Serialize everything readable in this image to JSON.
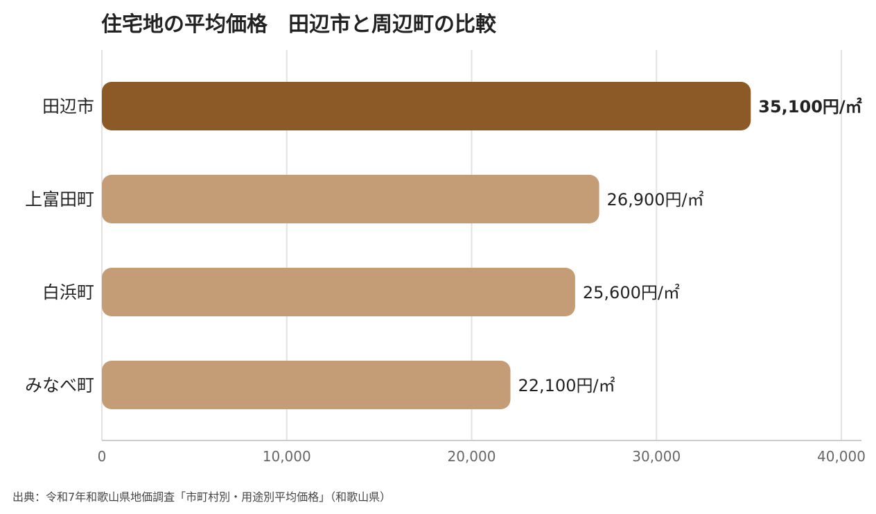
{
  "chart_data": {
    "type": "bar",
    "orientation": "horizontal",
    "title": "住宅地の平均価格　田辺市と周辺町の比較",
    "categories": [
      "田辺市",
      "上富田町",
      "白浜町",
      "みなべ町"
    ],
    "values": [
      35100,
      26900,
      25600,
      22100
    ],
    "value_labels": [
      "35,100円/㎡",
      "26,900円/㎡",
      "25,600円/㎡",
      "22,100円/㎡"
    ],
    "highlight_index": 0,
    "xlim": [
      0,
      40000
    ],
    "xticks": [
      0,
      10000,
      20000,
      30000,
      40000
    ],
    "xtick_labels": [
      "0",
      "10,000",
      "20,000",
      "30,000",
      "40,000"
    ],
    "grid": true,
    "colors": {
      "highlight": "#8B5A27",
      "default": "#C49C76",
      "grid": "#e2e2e2",
      "axis": "#cccccc"
    },
    "source": "出典：令和7年和歌山県地価調査「市町村別・用途別平均価格」（和歌山県）"
  }
}
